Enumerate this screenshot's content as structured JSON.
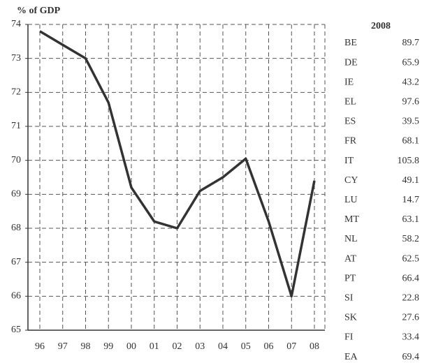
{
  "chart_data": {
    "type": "line",
    "y_label": "% of GDP",
    "categories": [
      "96",
      "97",
      "98",
      "99",
      "00",
      "01",
      "02",
      "03",
      "04",
      "05",
      "06",
      "07",
      "08"
    ],
    "values": [
      73.8,
      73.4,
      73.0,
      71.7,
      69.2,
      68.2,
      68.0,
      69.1,
      69.5,
      70.05,
      68.2,
      66.0,
      69.4
    ],
    "color": "#333333",
    "ylim": [
      65,
      74
    ],
    "yticks": [
      65,
      66,
      67,
      68,
      69,
      70,
      71,
      72,
      73,
      74
    ],
    "grid": true
  },
  "table": {
    "header": "2008",
    "rows": [
      [
        "BE",
        89.7
      ],
      [
        "DE",
        65.9
      ],
      [
        "IE",
        43.2
      ],
      [
        "EL",
        97.6
      ],
      [
        "ES",
        39.5
      ],
      [
        "FR",
        68.1
      ],
      [
        "IT",
        105.8
      ],
      [
        "CY",
        49.1
      ],
      [
        "LU",
        14.7
      ],
      [
        "MT",
        63.1
      ],
      [
        "NL",
        58.2
      ],
      [
        "AT",
        62.5
      ],
      [
        "PT",
        66.4
      ],
      [
        "SI",
        22.8
      ],
      [
        "SK",
        27.6
      ],
      [
        "FI",
        33.4
      ],
      [
        "EA",
        69.4
      ]
    ]
  }
}
